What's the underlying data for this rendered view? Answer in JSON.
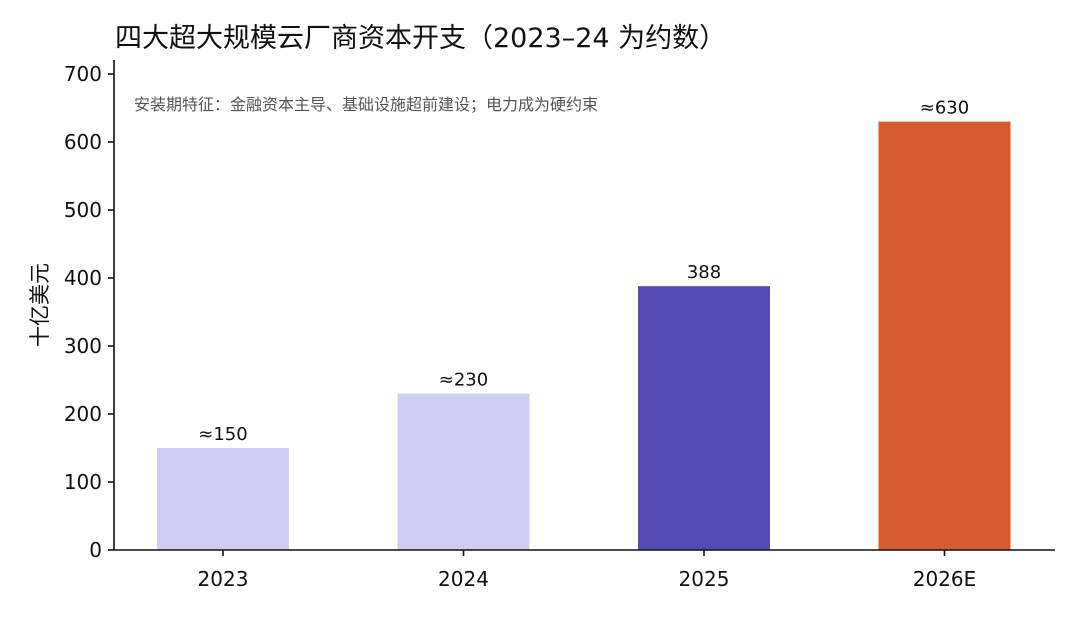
{
  "chart_data": {
    "type": "bar",
    "title": "四大超大规模云厂商资本开支（2023–24 为约数）",
    "subtitle": "安装期特征：金融资本主导、基础设施超前建设；电力成为硬约束",
    "ylabel": "十亿美元",
    "xlabel": "",
    "categories": [
      "2023",
      "2024",
      "2025",
      "2026E"
    ],
    "values": [
      150,
      230,
      388,
      630
    ],
    "value_labels": [
      "≈150",
      "≈230",
      "388",
      "≈630"
    ],
    "bar_colors": [
      "#cfcdf3",
      "#cfcdf3",
      "#544bb4",
      "#d75b31"
    ],
    "ylim": [
      0,
      720
    ],
    "yticks": [
      0,
      100,
      200,
      300,
      400,
      500,
      600,
      700
    ],
    "grid": false,
    "legend": "none"
  }
}
